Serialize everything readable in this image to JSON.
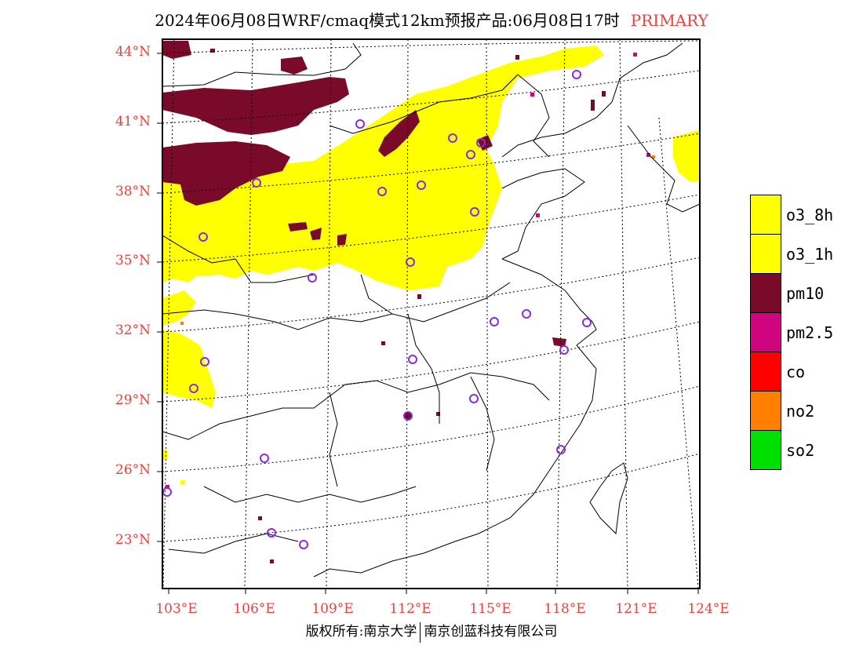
{
  "title": {
    "main": "2024年06月08日WRF/cmaq模式12km预报产品:06月08日17时",
    "mode": "PRIMARY"
  },
  "lat_labels": [
    "44°N",
    "41°N",
    "38°N",
    "35°N",
    "32°N",
    "29°N",
    "26°N",
    "23°N"
  ],
  "lon_labels": [
    "103°E",
    "106°E",
    "109°E",
    "112°E",
    "115°E",
    "118°E",
    "121°E",
    "124°E"
  ],
  "legend": [
    {
      "label": "o3_8h",
      "color": "#ffff00"
    },
    {
      "label": "o3_1h",
      "color": "#ffff00"
    },
    {
      "label": "pm10",
      "color": "#7a0a2a"
    },
    {
      "label": "pm2.5",
      "color": "#d0047e"
    },
    {
      "label": "co",
      "color": "#ff0000"
    },
    {
      "label": "no2",
      "color": "#ff8000"
    },
    {
      "label": "so2",
      "color": "#00e000"
    }
  ],
  "footer": {
    "copyright": "版权所有:南京大学",
    "company": "南京创蓝科技有限公司"
  }
}
